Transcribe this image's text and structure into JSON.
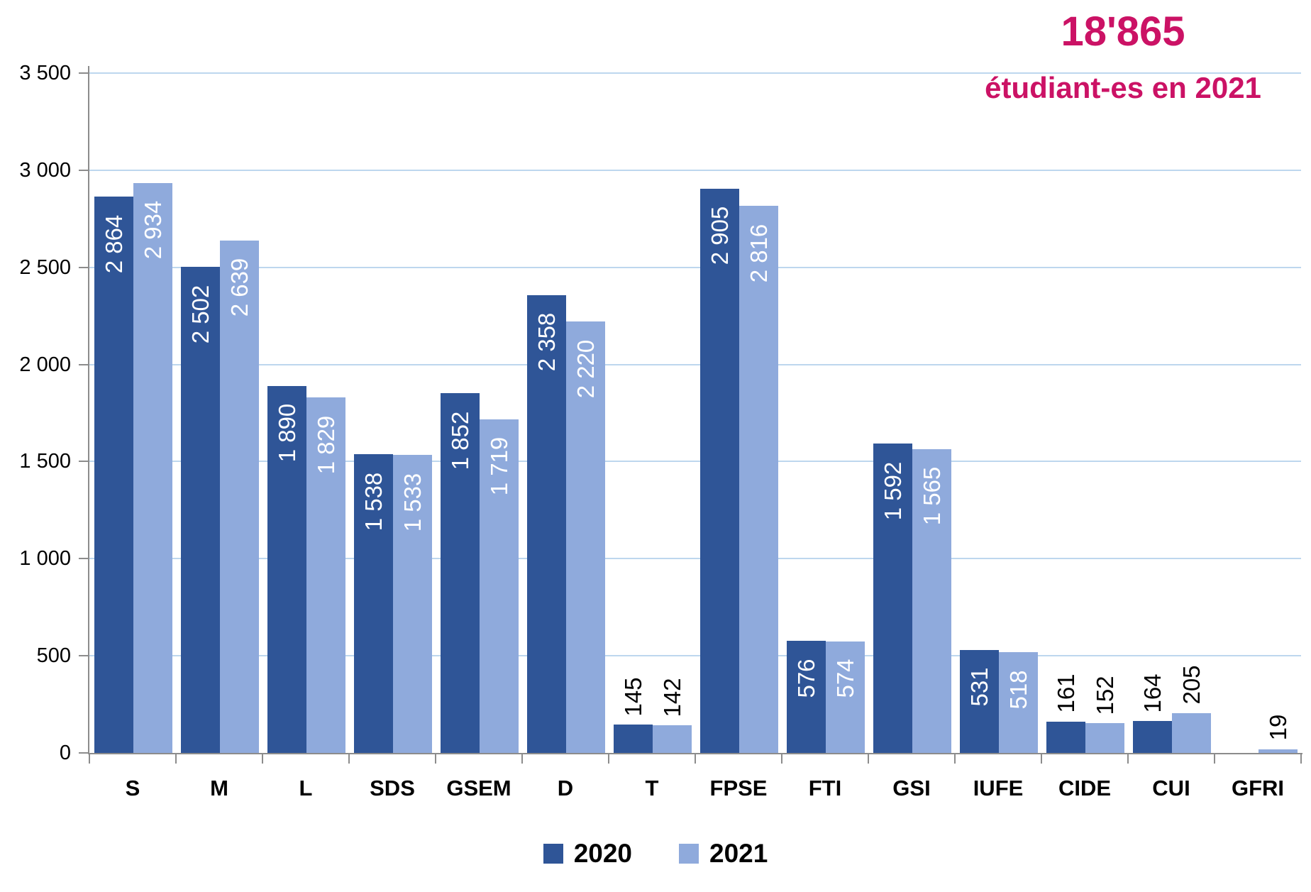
{
  "title": {
    "headline": "18'865",
    "subtitle": "étudiant-es en 2021",
    "color": "#CB1265"
  },
  "chart_data": {
    "type": "bar",
    "categories": [
      "S",
      "M",
      "L",
      "SDS",
      "GSEM",
      "D",
      "T",
      "FPSE",
      "FTI",
      "GSI",
      "IUFE",
      "CIDE",
      "CUI",
      "GFRI"
    ],
    "series": [
      {
        "name": "2020",
        "color": "#2F5597",
        "values": [
          2864,
          2502,
          1890,
          1538,
          1852,
          2358,
          145,
          2905,
          576,
          1592,
          531,
          161,
          164,
          null
        ]
      },
      {
        "name": "2021",
        "color": "#8FAADC",
        "values": [
          2934,
          2639,
          1829,
          1533,
          1719,
          2220,
          142,
          2816,
          574,
          1565,
          518,
          152,
          205,
          19
        ]
      }
    ],
    "ylim": [
      0,
      3500
    ],
    "ytick_interval": 500,
    "ytick_labels": [
      "0",
      "500",
      "1 000",
      "1 500",
      "2 000",
      "2 500",
      "3 000",
      "3 500"
    ],
    "grid": true,
    "gridline_color": "#BDD7EE",
    "axis_color": "#8C8C8C",
    "bar_label_color_inside": "#FFFFFF",
    "bar_label_color_outside": "#000000",
    "legend_position": "bottom"
  }
}
